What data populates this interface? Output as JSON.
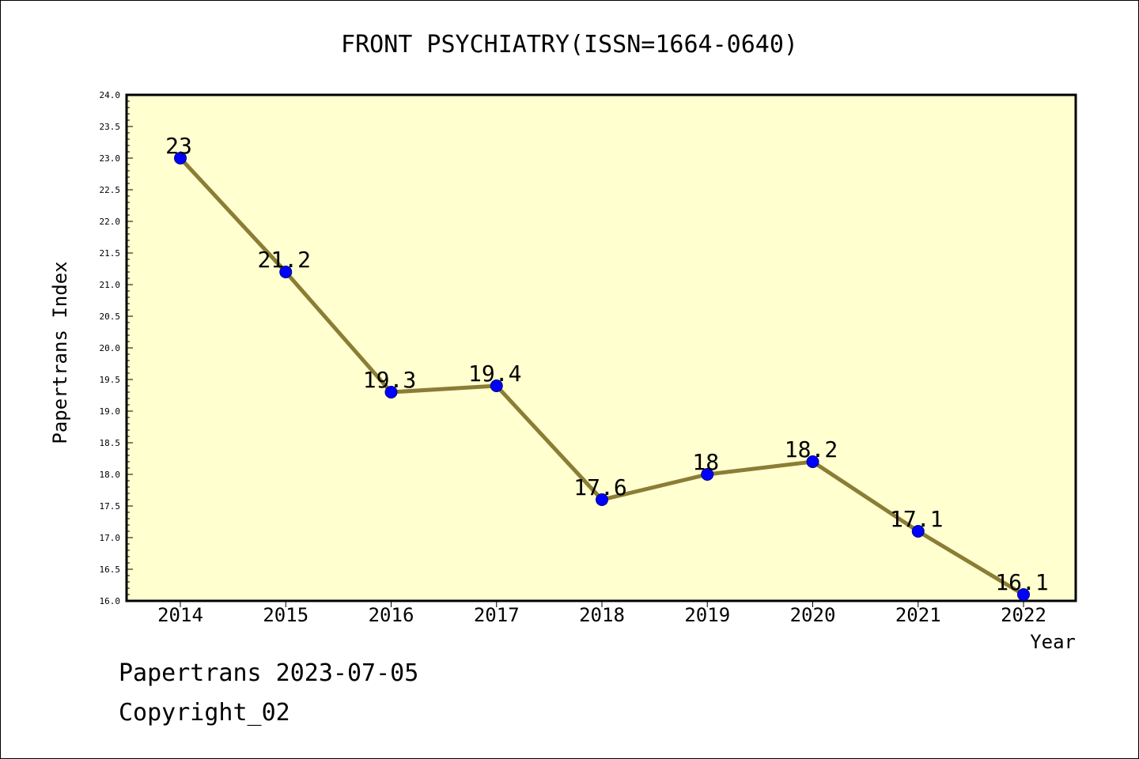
{
  "chart_data": {
    "type": "line",
    "title": "FRONT PSYCHIATRY(ISSN=1664-0640)",
    "xlabel": "Year",
    "ylabel": "Papertrans Index",
    "categories": [
      "2014",
      "2015",
      "2016",
      "2017",
      "2018",
      "2019",
      "2020",
      "2021",
      "2022"
    ],
    "values": [
      23,
      21.2,
      19.3,
      19.4,
      17.6,
      18,
      18.2,
      17.1,
      16.1
    ],
    "data_labels": [
      "23",
      "21.2",
      "19.3",
      "19.4",
      "17.6",
      "18",
      "18.2",
      "17.1",
      "16.1"
    ],
    "ylim": [
      16.0,
      24.0
    ],
    "yticks": [
      "16.0",
      "16.5",
      "17.0",
      "17.5",
      "18.0",
      "18.5",
      "19.0",
      "19.5",
      "20.0",
      "20.5",
      "21.0",
      "21.5",
      "22.0",
      "22.5",
      "23.0",
      "23.5",
      "24.0"
    ],
    "grid": false,
    "colors": {
      "plot_background": "#ffffd0",
      "line": "#8b7d35",
      "marker": "#0000ff",
      "marker_edge": "#000080"
    }
  },
  "footer": {
    "source": "Papertrans 2023-07-05",
    "copyright": "Copyright_02"
  }
}
